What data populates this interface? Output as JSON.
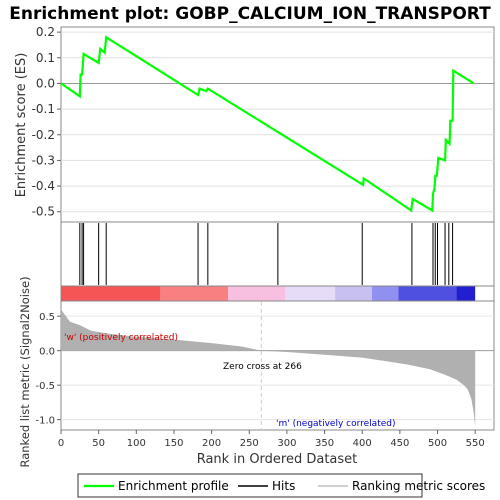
{
  "title": "Enrichment plot: GOBP_CALCIUM_ION_TRANSPORT",
  "chart_data": {
    "type": "line",
    "x_range": [
      0,
      575
    ],
    "x_ticks": [
      0,
      50,
      100,
      150,
      200,
      250,
      300,
      350,
      400,
      450,
      500,
      550
    ],
    "x_label": "Rank in Ordered Dataset",
    "enrichment": {
      "ylabel": "Enrichment score (ES)",
      "ylim": [
        -0.54,
        0.22
      ],
      "y_ticks": [
        0.2,
        0.1,
        0.0,
        -0.1,
        -0.2,
        -0.3,
        -0.4,
        -0.5
      ],
      "y_tick_labels": [
        "0.2",
        "0.1",
        "0.0",
        "-0.1",
        "-0.2",
        "-0.3",
        "-0.4",
        "-0.5"
      ],
      "series_name": "Enrichment profile",
      "color": "#00ff00",
      "points": [
        [
          0,
          0
        ],
        [
          25,
          -0.05
        ],
        [
          26,
          0.035
        ],
        [
          28,
          0.035
        ],
        [
          30,
          0.115
        ],
        [
          50,
          0.08
        ],
        [
          52,
          0.135
        ],
        [
          58,
          0.12
        ],
        [
          60,
          0.18
        ],
        [
          182,
          -0.045
        ],
        [
          184,
          -0.02
        ],
        [
          193,
          -0.03
        ],
        [
          195,
          -0.02
        ],
        [
          401,
          -0.395
        ],
        [
          402,
          -0.37
        ],
        [
          465,
          -0.495
        ],
        [
          467,
          -0.45
        ],
        [
          493,
          -0.495
        ],
        [
          494,
          -0.43
        ],
        [
          496,
          -0.41
        ],
        [
          497,
          -0.36
        ],
        [
          499,
          -0.36
        ],
        [
          501,
          -0.29
        ],
        [
          510,
          -0.3
        ],
        [
          511,
          -0.22
        ],
        [
          516,
          -0.235
        ],
        [
          517,
          -0.145
        ],
        [
          520,
          -0.145
        ],
        [
          521,
          0.05
        ],
        [
          548,
          0.0
        ]
      ]
    },
    "hits": {
      "series_name": "Hits",
      "positions": [
        25,
        28,
        30,
        50,
        60,
        182,
        195,
        288,
        400,
        466,
        494,
        497,
        500,
        510,
        515,
        520
      ]
    },
    "ranking_bar": {
      "segments": [
        {
          "from": 0,
          "to": 132,
          "color": "#f55555"
        },
        {
          "from": 132,
          "to": 222,
          "color": "#f88080"
        },
        {
          "from": 222,
          "to": 298,
          "color": "#f8c0e0"
        },
        {
          "from": 298,
          "to": 364,
          "color": "#e6dcf8"
        },
        {
          "from": 364,
          "to": 413,
          "color": "#c8c0f0"
        },
        {
          "from": 413,
          "to": 448,
          "color": "#9090f0"
        },
        {
          "from": 448,
          "to": 525,
          "color": "#5050e0"
        },
        {
          "from": 525,
          "to": 550,
          "color": "#2020d0"
        }
      ]
    },
    "metric": {
      "ylabel": "Ranked list metric (Signal2Noise)",
      "series_name": "Ranking metric scores",
      "ylim": [
        -1.15,
        0.72
      ],
      "y_ticks": [
        0.5,
        0.0,
        -0.5,
        -1.0
      ],
      "y_tick_labels": [
        "0.5",
        "0.0",
        "-0.5",
        "-1.0"
      ],
      "zero_cross": 266,
      "n_genes": 550,
      "curve": [
        [
          0,
          0.6
        ],
        [
          5,
          0.52
        ],
        [
          12,
          0.42
        ],
        [
          25,
          0.37
        ],
        [
          40,
          0.29
        ],
        [
          60,
          0.25
        ],
        [
          100,
          0.2
        ],
        [
          150,
          0.16
        ],
        [
          200,
          0.11
        ],
        [
          240,
          0.06
        ],
        [
          266,
          0.0
        ],
        [
          300,
          -0.02
        ],
        [
          350,
          -0.06
        ],
        [
          400,
          -0.1
        ],
        [
          430,
          -0.15
        ],
        [
          460,
          -0.2
        ],
        [
          490,
          -0.27
        ],
        [
          510,
          -0.35
        ],
        [
          525,
          -0.42
        ],
        [
          535,
          -0.5
        ],
        [
          540,
          -0.56
        ],
        [
          545,
          -0.7
        ],
        [
          548,
          -0.9
        ],
        [
          550,
          -1.1
        ]
      ],
      "color": "#b0b0b0",
      "pos_label": "'w' (positively correlated)",
      "neg_label": "'m' (negatively correlated)",
      "zero_label": "Zero cross at 266"
    },
    "legend": {
      "placement": "bottom",
      "items": [
        {
          "label": "Enrichment profile",
          "color": "#00ff00"
        },
        {
          "label": "Hits",
          "color": "#000000"
        },
        {
          "label": "Ranking metric scores",
          "color": "#c0c0c0"
        }
      ]
    }
  }
}
